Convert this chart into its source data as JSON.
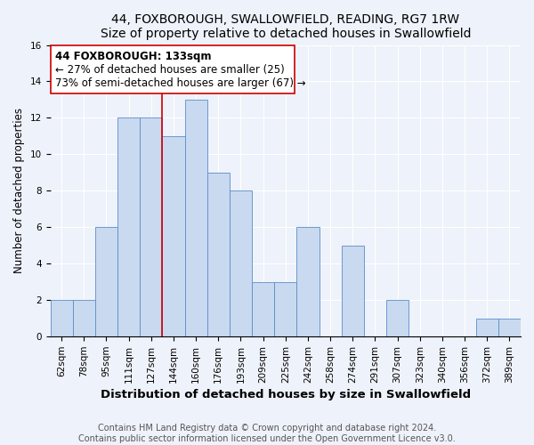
{
  "title": "44, FOXBOROUGH, SWALLOWFIELD, READING, RG7 1RW",
  "subtitle": "Size of property relative to detached houses in Swallowfield",
  "xlabel": "Distribution of detached houses by size in Swallowfield",
  "ylabel": "Number of detached properties",
  "categories": [
    "62sqm",
    "78sqm",
    "95sqm",
    "111sqm",
    "127sqm",
    "144sqm",
    "160sqm",
    "176sqm",
    "193sqm",
    "209sqm",
    "225sqm",
    "242sqm",
    "258sqm",
    "274sqm",
    "291sqm",
    "307sqm",
    "323sqm",
    "340sqm",
    "356sqm",
    "372sqm",
    "389sqm"
  ],
  "values": [
    2,
    2,
    6,
    12,
    12,
    11,
    13,
    9,
    8,
    3,
    3,
    6,
    0,
    5,
    0,
    2,
    0,
    0,
    0,
    1,
    1
  ],
  "bar_color": "#c9d9f0",
  "bar_edge_color": "#5b8dc8",
  "vline_index": 4.5,
  "annotation_text_line1": "44 FOXBOROUGH: 133sqm",
  "annotation_text_line2": "← 27% of detached houses are smaller (25)",
  "annotation_text_line3": "73% of semi-detached houses are larger (67) →",
  "vline_color": "#cc0000",
  "box_edge_color": "#cc0000",
  "ylim": [
    0,
    16
  ],
  "yticks": [
    0,
    2,
    4,
    6,
    8,
    10,
    12,
    14,
    16
  ],
  "footnote1": "Contains HM Land Registry data © Crown copyright and database right 2024.",
  "footnote2": "Contains public sector information licensed under the Open Government Licence v3.0.",
  "background_color": "#eef2fa",
  "title_fontsize": 10,
  "xlabel_fontsize": 9.5,
  "ylabel_fontsize": 8.5,
  "tick_fontsize": 7.5,
  "annotation_fontsize": 8.5,
  "footnote_fontsize": 7
}
